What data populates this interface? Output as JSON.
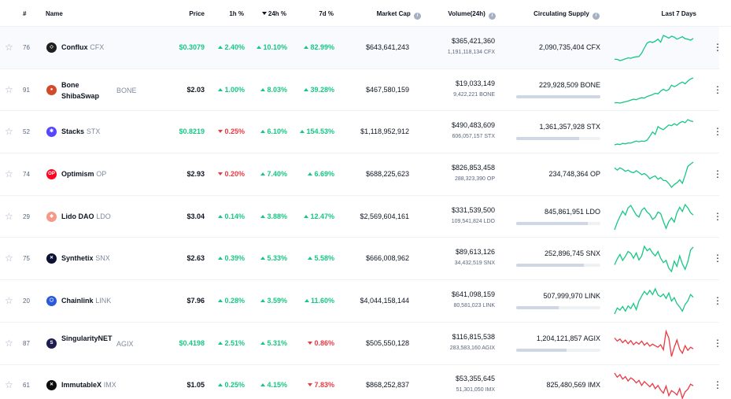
{
  "header": {
    "rank": "#",
    "name": "Name",
    "price": "Price",
    "h1": "1h %",
    "h24": "24h %",
    "d7": "7d %",
    "market_cap": "Market Cap",
    "volume": "Volume(24h)",
    "supply": "Circulating Supply",
    "last7": "Last 7 Days"
  },
  "icons": {
    "star": "star-outline-icon",
    "more": "vertical-ellipsis-icon",
    "info": "info-icon",
    "sort": "sort-down-icon"
  },
  "colors": {
    "up": "#16c784",
    "down": "#ea3943"
  },
  "rows": [
    {
      "rank": "76",
      "name": "Conflux",
      "symbol": "CFX",
      "icon_color": "#1f1f1f",
      "icon_glyph": "◇",
      "price": "$0.3079",
      "price_green": true,
      "h1": "2.40%",
      "h1_dir": "up",
      "h24": "10.10%",
      "h24_dir": "up",
      "d7": "82.99%",
      "d7_dir": "up",
      "market_cap": "$643,641,243",
      "volume": "$365,421,360",
      "volume_sub": "1,191,118,134 CFX",
      "supply": "2,090,735,404 CFX",
      "supply_fraction": null,
      "spark_dir": "up",
      "spark": [
        2,
        2,
        1.5,
        1.8,
        2.2,
        2.6,
        2.4,
        2.8,
        3,
        3.1,
        4.5,
        6.5,
        8.5,
        9,
        8.7,
        9.2,
        10,
        8.8,
        11.5,
        11,
        10.4,
        11.2,
        10.8,
        10,
        10.5,
        11,
        10.2,
        10,
        9.6,
        10.3
      ]
    },
    {
      "rank": "91",
      "name": "Bone ShibaSwap",
      "symbol": "BONE",
      "icon_color": "#d24a2a",
      "icon_glyph": "●",
      "price": "$2.03",
      "price_green": false,
      "h1": "1.00%",
      "h1_dir": "up",
      "h24": "8.03%",
      "h24_dir": "up",
      "d7": "39.28%",
      "d7_dir": "up",
      "market_cap": "$467,580,159",
      "volume": "$19,033,149",
      "volume_sub": "9,422,221 BONE",
      "supply": "229,928,509 BONE",
      "supply_fraction": 1.0,
      "spark_dir": "up",
      "spark": [
        1,
        1.1,
        0.9,
        1.2,
        1.5,
        1.8,
        2.2,
        2.6,
        2.4,
        2.9,
        3.3,
        3.1,
        3.8,
        4.2,
        4.6,
        5.2,
        5,
        6.2,
        7,
        6.3,
        6.9,
        8.8,
        8.1,
        8.7,
        9.6,
        10.2,
        9.4,
        10.6,
        11.5,
        12
      ]
    },
    {
      "rank": "52",
      "name": "Stacks",
      "symbol": "STX",
      "icon_color": "#5546ff",
      "icon_glyph": "✱",
      "price": "$0.8219",
      "price_green": true,
      "h1": "0.25%",
      "h1_dir": "down",
      "h24": "6.10%",
      "h24_dir": "up",
      "d7": "154.53%",
      "d7_dir": "up",
      "market_cap": "$1,118,952,912",
      "volume": "$490,483,609",
      "volume_sub": "606,057,157 STX",
      "supply": "1,361,357,928 STX",
      "supply_fraction": 0.75,
      "spark_dir": "up",
      "spark": [
        1,
        1.3,
        1.1,
        1.6,
        1.4,
        1.8,
        1.7,
        2.2,
        2.6,
        2.3,
        2.6,
        2.5,
        3,
        4.6,
        6.5,
        5.5,
        8.8,
        8,
        7.5,
        8.5,
        9.5,
        9.2,
        10,
        9.4,
        10.4,
        11,
        10.5,
        11.8,
        11.2,
        11
      ]
    },
    {
      "rank": "74",
      "name": "Optimism",
      "symbol": "OP",
      "icon_color": "#ff0420",
      "icon_glyph": "OP",
      "price": "$2.93",
      "price_green": false,
      "h1": "0.20%",
      "h1_dir": "down",
      "h24": "7.40%",
      "h24_dir": "up",
      "d7": "6.69%",
      "d7_dir": "up",
      "market_cap": "$688,225,623",
      "volume": "$826,853,458",
      "volume_sub": "288,323,390 OP",
      "supply": "234,748,364 OP",
      "supply_fraction": null,
      "spark_dir": "up",
      "spark": [
        9,
        8.2,
        9,
        8.5,
        7.8,
        8.2,
        7.6,
        7.3,
        8,
        7.4,
        6.6,
        7,
        6.3,
        5.2,
        5.8,
        6.2,
        5,
        5.6,
        4.6,
        4.5,
        3.5,
        2.2,
        3.2,
        3.8,
        4.8,
        3.6,
        6.4,
        9.5,
        10.3,
        11
      ]
    },
    {
      "rank": "29",
      "name": "Lido DAO",
      "symbol": "LDO",
      "icon_color": "#f69988",
      "icon_glyph": "◆",
      "price": "$3.04",
      "price_green": false,
      "h1": "0.14%",
      "h1_dir": "up",
      "h24": "3.88%",
      "h24_dir": "up",
      "d7": "12.47%",
      "d7_dir": "up",
      "market_cap": "$2,569,604,161",
      "volume": "$331,539,500",
      "volume_sub": "109,541,824 LDO",
      "supply": "845,861,951 LDO",
      "supply_fraction": 0.85,
      "spark_dir": "up",
      "spark": [
        2,
        4.5,
        6.5,
        8.3,
        7,
        9.4,
        10.2,
        8.6,
        7,
        6.3,
        8.6,
        9.4,
        8,
        7.2,
        5.5,
        6.2,
        8,
        7.5,
        4.8,
        2.5,
        4.8,
        6,
        4.6,
        7.8,
        9.6,
        8.2,
        10.5,
        9.4,
        7.8,
        7
      ]
    },
    {
      "rank": "75",
      "name": "Synthetix",
      "symbol": "SNX",
      "icon_color": "#0b1233",
      "icon_glyph": "✕",
      "price": "$2.63",
      "price_green": false,
      "h1": "0.39%",
      "h1_dir": "up",
      "h24": "5.33%",
      "h24_dir": "up",
      "d7": "5.58%",
      "d7_dir": "up",
      "market_cap": "$666,008,962",
      "volume": "$89,613,126",
      "volume_sub": "34,432,519 SNX",
      "supply": "252,896,745 SNX",
      "supply_fraction": 0.8,
      "spark_dir": "up",
      "spark": [
        5.2,
        6.8,
        8,
        6.4,
        7.5,
        8.8,
        8.3,
        7,
        8.4,
        6.5,
        7.6,
        10.2,
        9,
        9.6,
        8.4,
        7.6,
        8.8,
        7,
        5.8,
        6.4,
        4.3,
        3.4,
        6.2,
        4.8,
        7.6,
        5.5,
        4,
        6,
        9.2,
        10
      ]
    },
    {
      "rank": "20",
      "name": "Chainlink",
      "symbol": "LINK",
      "icon_color": "#2a5ada",
      "icon_glyph": "⬡",
      "price": "$7.96",
      "price_green": false,
      "h1": "0.28%",
      "h1_dir": "up",
      "h24": "3.59%",
      "h24_dir": "up",
      "d7": "11.60%",
      "d7_dir": "up",
      "market_cap": "$4,044,158,144",
      "volume": "$641,098,159",
      "volume_sub": "80,581,023 LINK",
      "supply": "507,999,970 LINK",
      "supply_fraction": 0.5,
      "spark_dir": "up",
      "spark": [
        1.5,
        3.8,
        3,
        4.4,
        2.6,
        4.6,
        3.6,
        5.6,
        3.2,
        6.5,
        8.4,
        10.2,
        9,
        10.6,
        9,
        11.2,
        8.8,
        8.2,
        9.2,
        7.5,
        9.6,
        6.5,
        7.8,
        5.5,
        4.2,
        2.6,
        5.2,
        6.5,
        9,
        8
      ]
    },
    {
      "rank": "87",
      "name": "SingularityNET",
      "symbol": "AGIX",
      "icon_color": "#1d1d4f",
      "icon_glyph": "S",
      "price": "$0.4198",
      "price_green": true,
      "h1": "2.51%",
      "h1_dir": "up",
      "h24": "5.31%",
      "h24_dir": "up",
      "d7": "0.86%",
      "d7_dir": "down",
      "market_cap": "$505,550,128",
      "volume": "$116,815,538",
      "volume_sub": "283,583,160 AGIX",
      "supply": "1,204,121,857 AGIX",
      "supply_fraction": 0.6,
      "spark_dir": "down",
      "spark": [
        9.4,
        8.2,
        9,
        7.6,
        8.6,
        7.2,
        8.4,
        6.8,
        7.8,
        7,
        8.2,
        6.6,
        7.6,
        6.2,
        7,
        6.4,
        5.8,
        6.8,
        4.8,
        12,
        9.4,
        2.2,
        5.8,
        8.6,
        5,
        3.5,
        6.4,
        4.6,
        5.8,
        5.2
      ]
    },
    {
      "rank": "61",
      "name": "ImmutableX",
      "symbol": "IMX",
      "icon_color": "#0d0d0d",
      "icon_glyph": "✕",
      "price": "$1.05",
      "price_green": false,
      "h1": "0.25%",
      "h1_dir": "up",
      "h24": "4.15%",
      "h24_dir": "up",
      "d7": "7.83%",
      "d7_dir": "down",
      "market_cap": "$868,252,837",
      "volume": "$53,355,645",
      "volume_sub": "51,301,050 IMX",
      "supply": "825,480,569 IMX",
      "supply_fraction": null,
      "spark_dir": "down",
      "spark": [
        10.5,
        9.2,
        10,
        8.6,
        9.4,
        8,
        9,
        8.4,
        7.4,
        8.2,
        6.6,
        7.8,
        7,
        6.2,
        7.2,
        5.6,
        6.6,
        5.2,
        4.2,
        6.4,
        3.4,
        5,
        4.4,
        3.6,
        5.6,
        2.6,
        4.6,
        5.4,
        7,
        6.5
      ]
    }
  ]
}
